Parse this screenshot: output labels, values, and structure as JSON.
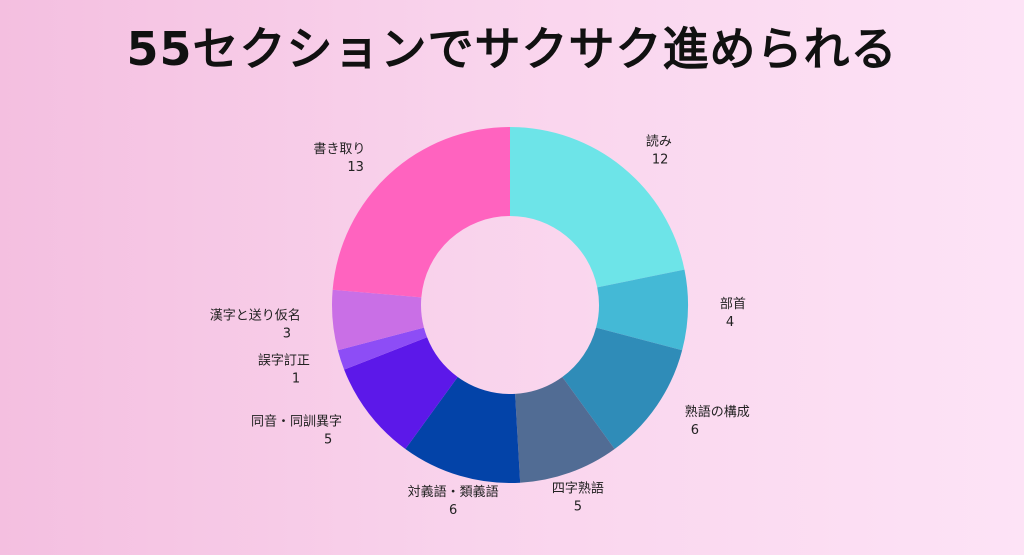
{
  "title": "55セクションでサクサク進められる",
  "chart_data": {
    "type": "pie",
    "title": "55セクションでサクサク進められる",
    "categories": [
      "読み",
      "部首",
      "熟語の構成",
      "四字熟語",
      "対義語・類義語",
      "同音・同訓異字",
      "誤字訂正",
      "漢字と送り仮名",
      "書き取り"
    ],
    "values": [
      12,
      4,
      6,
      5,
      6,
      5,
      1,
      3,
      13
    ],
    "colors": [
      "#6de4e8",
      "#44b9d6",
      "#2f8cb8",
      "#516c94",
      "#0343a8",
      "#5c18e9",
      "#8d4df6",
      "#c96fe6",
      "#ff63bf"
    ],
    "donut": true,
    "legend": "none"
  }
}
